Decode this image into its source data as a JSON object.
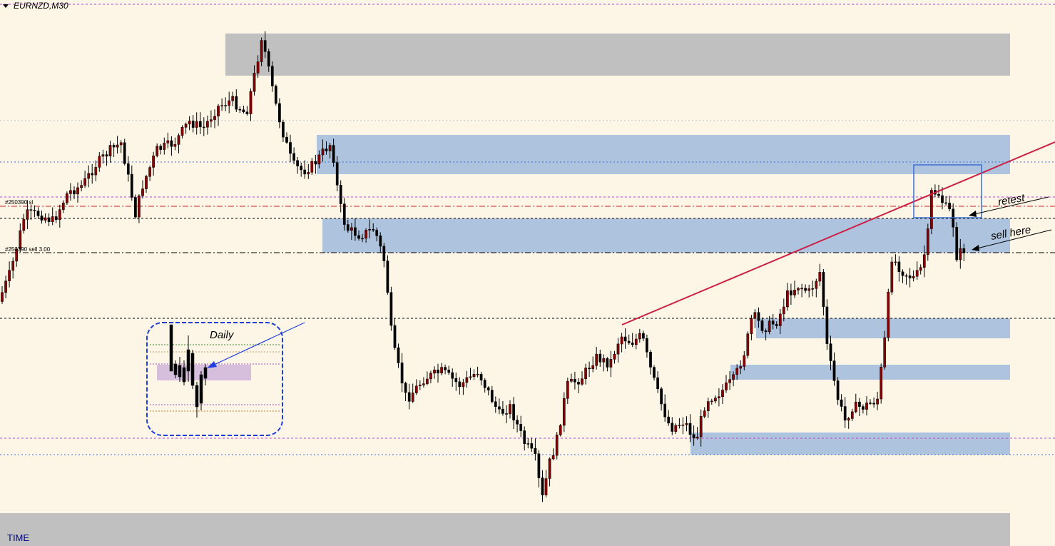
{
  "window": {
    "symbol_label": "EURNZD,M30",
    "time_label": "TIME"
  },
  "orders": {
    "sl_label": "#250390 sl",
    "sell_label": "#250390 sell 3.00"
  },
  "annotations": {
    "inset_title": "Daily",
    "retest": "retest",
    "sell_here": "sell here"
  },
  "colors": {
    "background": "#fdf6e6",
    "bull_candle": "#8b0000",
    "bear_candle": "#000000",
    "zone_blue": "#aec3dd",
    "zone_gray": "#c0c0c0",
    "zone_purple": "#d6bfdc",
    "trendline": "#cc1f46",
    "inset_border": "#1f3fd6",
    "arrow_blue": "#2040e0"
  },
  "chart_data": {
    "type": "candlestick",
    "title": "EURNZD,M30",
    "xlabel": "",
    "ylabel": "",
    "ylim": [
      0,
      765
    ],
    "waypoints": [
      [
        0,
        430
      ],
      [
        20,
        380
      ],
      [
        40,
        300
      ],
      [
        60,
        300
      ],
      [
        80,
        310
      ],
      [
        100,
        270
      ],
      [
        120,
        260
      ],
      [
        140,
        230
      ],
      [
        160,
        210
      ],
      [
        175,
        200
      ],
      [
        195,
        300
      ],
      [
        205,
        260
      ],
      [
        225,
        210
      ],
      [
        250,
        200
      ],
      [
        270,
        170
      ],
      [
        290,
        180
      ],
      [
        310,
        150
      ],
      [
        330,
        140
      ],
      [
        350,
        160
      ],
      [
        365,
        90
      ],
      [
        372,
        50
      ],
      [
        380,
        90
      ],
      [
        390,
        140
      ],
      [
        400,
        180
      ],
      [
        415,
        230
      ],
      [
        430,
        240
      ],
      [
        445,
        230
      ],
      [
        460,
        210
      ],
      [
        470,
        200
      ],
      [
        480,
        280
      ],
      [
        490,
        320
      ],
      [
        510,
        330
      ],
      [
        530,
        320
      ],
      [
        545,
        370
      ],
      [
        555,
        480
      ],
      [
        575,
        560
      ],
      [
        600,
        530
      ],
      [
        625,
        520
      ],
      [
        650,
        540
      ],
      [
        675,
        520
      ],
      [
        690,
        550
      ],
      [
        705,
        580
      ],
      [
        720,
        570
      ],
      [
        740,
        620
      ],
      [
        755,
        640
      ],
      [
        765,
        700
      ],
      [
        775,
        650
      ],
      [
        785,
        620
      ],
      [
        800,
        540
      ],
      [
        820,
        530
      ],
      [
        840,
        500
      ],
      [
        860,
        510
      ],
      [
        875,
        470
      ],
      [
        890,
        480
      ],
      [
        905,
        470
      ],
      [
        915,
        510
      ],
      [
        930,
        560
      ],
      [
        945,
        600
      ],
      [
        965,
        590
      ],
      [
        980,
        620
      ],
      [
        995,
        560
      ],
      [
        1015,
        550
      ],
      [
        1035,
        530
      ],
      [
        1050,
        490
      ],
      [
        1060,
        440
      ],
      [
        1075,
        460
      ],
      [
        1095,
        450
      ],
      [
        1110,
        410
      ],
      [
        1125,
        400
      ],
      [
        1140,
        410
      ],
      [
        1155,
        380
      ],
      [
        1165,
        490
      ],
      [
        1180,
        560
      ],
      [
        1190,
        590
      ],
      [
        1200,
        570
      ],
      [
        1215,
        570
      ],
      [
        1235,
        560
      ],
      [
        1245,
        480
      ],
      [
        1255,
        360
      ],
      [
        1270,
        380
      ],
      [
        1285,
        390
      ],
      [
        1295,
        380
      ],
      [
        1305,
        340
      ],
      [
        1310,
        270
      ],
      [
        1320,
        270
      ],
      [
        1330,
        290
      ],
      [
        1340,
        300
      ],
      [
        1345,
        360
      ],
      [
        1355,
        350
      ]
    ]
  }
}
